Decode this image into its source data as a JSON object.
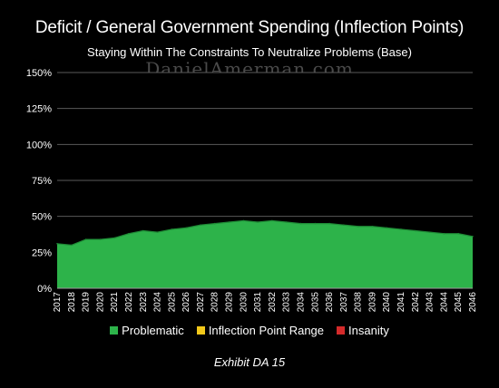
{
  "chart_data": {
    "type": "area",
    "title": "Deficit / General Government Spending (Inflection Points)",
    "subtitle": "Staying Within The Constraints To Neutralize Problems (Base)",
    "watermark": "DanielAmerman.com",
    "caption": "Exhibit DA 15",
    "x": [
      2017,
      2018,
      2019,
      2020,
      2021,
      2022,
      2023,
      2024,
      2025,
      2026,
      2027,
      2028,
      2029,
      2030,
      2031,
      2032,
      2033,
      2034,
      2035,
      2036,
      2037,
      2038,
      2039,
      2040,
      2041,
      2042,
      2043,
      2044,
      2045,
      2046
    ],
    "series": [
      {
        "name": "Problematic",
        "color": "#2db34a",
        "values": [
          31,
          30,
          34,
          34,
          35,
          38,
          40,
          39,
          41,
          42,
          44,
          45,
          46,
          47,
          46,
          47,
          46,
          45,
          45,
          45,
          44,
          43,
          43,
          42,
          41,
          40,
          39,
          38,
          38,
          36
        ]
      }
    ],
    "legend": [
      {
        "label": "Problematic",
        "color": "#2db34a"
      },
      {
        "label": "Inflection Point Range",
        "color": "#f2c81a"
      },
      {
        "label": "Insanity",
        "color": "#d42a2a"
      }
    ],
    "yticks": [
      "0%",
      "25%",
      "50%",
      "75%",
      "100%",
      "125%",
      "150%"
    ],
    "ylim": [
      0,
      150
    ],
    "grid": true,
    "legend_position": "bottom"
  }
}
